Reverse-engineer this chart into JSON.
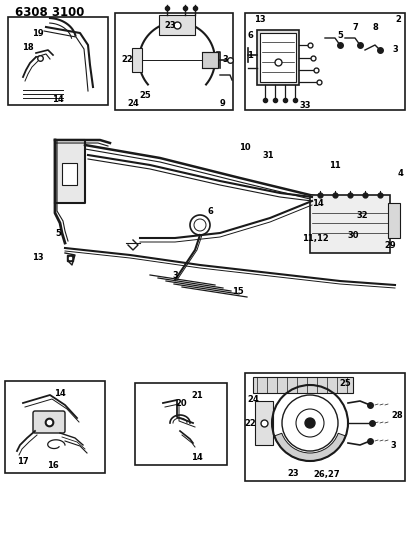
{
  "title": "6308 3100",
  "bg_color": "#ffffff",
  "lc": "#1a1a1a",
  "tc": "#000000",
  "tfs": 8.5,
  "lfs": 6.0,
  "fig_w": 4.08,
  "fig_h": 5.33,
  "dpi": 100,
  "boxes": {
    "b1": [
      8,
      428,
      100,
      88
    ],
    "b2": [
      115,
      423,
      118,
      97
    ],
    "b3": [
      245,
      423,
      160,
      97
    ],
    "b4": [
      5,
      60,
      100,
      92
    ],
    "b5": [
      135,
      68,
      92,
      82
    ],
    "b6": [
      245,
      52,
      160,
      108
    ]
  },
  "center_labels": [
    [
      "10",
      248,
      357
    ],
    [
      "31",
      270,
      352
    ],
    [
      "11",
      335,
      340
    ],
    [
      "4",
      398,
      325
    ],
    [
      "30",
      355,
      275
    ],
    [
      "11,12",
      312,
      272
    ],
    [
      "29",
      385,
      270
    ],
    [
      "32",
      358,
      305
    ],
    [
      "14",
      315,
      318
    ],
    [
      "5",
      62,
      275
    ],
    [
      "13",
      35,
      335
    ],
    [
      "6",
      212,
      303
    ],
    [
      "3",
      175,
      342
    ],
    [
      "15",
      238,
      375
    ]
  ]
}
